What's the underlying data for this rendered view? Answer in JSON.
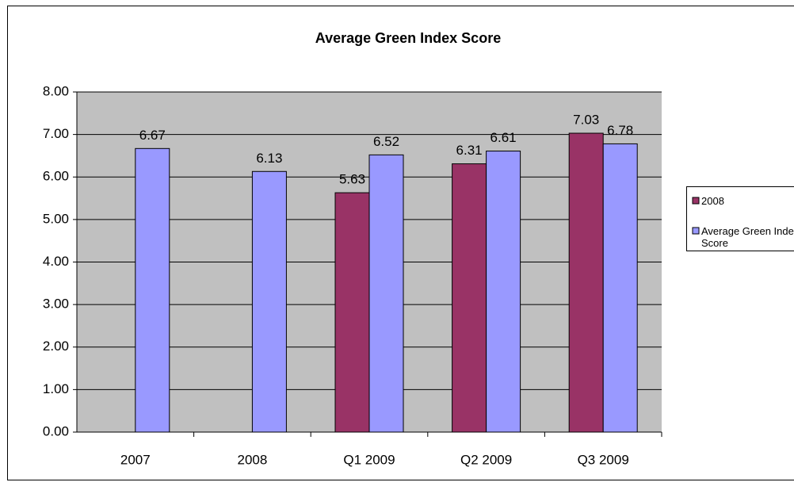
{
  "chart_data": {
    "type": "bar",
    "title": "Average Green Index Score",
    "categories": [
      "2007",
      "2008",
      "Q1 2009",
      "Q2 2009",
      "Q3 2009"
    ],
    "series": [
      {
        "name": "2008",
        "color": "#993366",
        "values": [
          null,
          null,
          5.63,
          6.31,
          7.03
        ]
      },
      {
        "name": "Average Green Index Score",
        "color": "#9999ff",
        "values": [
          6.67,
          6.13,
          6.52,
          6.61,
          6.78
        ]
      }
    ],
    "ylim": [
      0,
      8
    ],
    "yticks": [
      {
        "value": 0,
        "label": "0.00"
      },
      {
        "value": 1,
        "label": "1.00"
      },
      {
        "value": 2,
        "label": "2.00"
      },
      {
        "value": 3,
        "label": "3.00"
      },
      {
        "value": 4,
        "label": "4.00"
      },
      {
        "value": 5,
        "label": "5.00"
      },
      {
        "value": 6,
        "label": "6.00"
      },
      {
        "value": 7,
        "label": "7.00"
      },
      {
        "value": 8,
        "label": "8.00"
      }
    ],
    "grid": true,
    "legend": "right",
    "background": "#c0c0c0"
  }
}
